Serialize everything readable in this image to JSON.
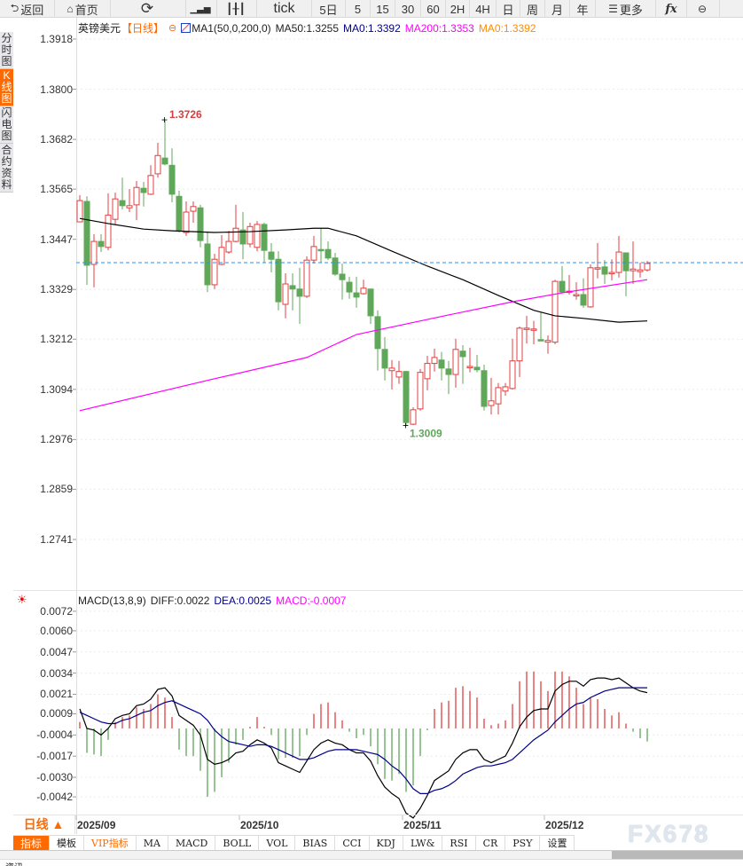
{
  "toolbar": {
    "items": [
      {
        "label": "返回",
        "icon": "back-arrow-icon"
      },
      {
        "label": "首页",
        "icon": "home-icon"
      },
      {
        "label": "",
        "icon": "refresh-icon"
      },
      {
        "label": "",
        "icon": "line-chart-icon"
      },
      {
        "label": "",
        "icon": "candlestick-icon"
      },
      {
        "label": "tick"
      },
      {
        "label": "5日"
      },
      {
        "label": "5"
      },
      {
        "label": "15"
      },
      {
        "label": "30"
      },
      {
        "label": "60"
      },
      {
        "label": "2H"
      },
      {
        "label": "4H"
      },
      {
        "label": "日"
      },
      {
        "label": "周"
      },
      {
        "label": "月"
      },
      {
        "label": "年"
      },
      {
        "label": "更多",
        "icon": "menu-icon"
      },
      {
        "label": "fx",
        "icon": "formula-icon"
      },
      {
        "label": "",
        "icon": "zoom-out-icon"
      }
    ]
  },
  "sidebar": {
    "items": [
      {
        "label": "分时图"
      },
      {
        "label": "K线图",
        "active": true
      },
      {
        "label": "闪电图"
      },
      {
        "label": "合约资料"
      }
    ]
  },
  "legend": {
    "symbol": "英镑美元",
    "period": "【日线】",
    "indicator": "MA1(50,0,200,0)",
    "ma50": "MA50:1.3255",
    "ma0a": "MA0:1.3392",
    "ma200": "MA200:1.3353",
    "ma0b": "MA0:1.3392"
  },
  "macd_legend": {
    "name": "MACD(13,8,9)",
    "diff": "DIFF:0.0022",
    "dea": "DEA:0.0025",
    "macd": "MACD:-0.0007"
  },
  "period_button": "日线 ▲",
  "tabs": [
    "指标",
    "模板",
    "VIP指标",
    "MA",
    "MACD",
    "BOLL",
    "VOL",
    "BIAS",
    "CCI",
    "KDJ",
    "LW&",
    "RSI",
    "CR",
    "PSY",
    "设置"
  ],
  "watermark": "FX678",
  "bottom_label": "资讯",
  "colors": {
    "up": "#e04040",
    "down": "#5fa85a",
    "ma50": "#000000",
    "ma200": "#ff00ff",
    "price_line": "#1e90ff",
    "dea": "#00008b",
    "accent": "#ff6a00"
  },
  "chart_data": [
    {
      "type": "candlestick",
      "ylim": [
        1.2741,
        1.3918
      ],
      "yticks": [
        "1.3918",
        "1.3800",
        "1.3682",
        "1.3565",
        "1.3447",
        "1.3329",
        "1.3212",
        "1.3094",
        "1.2976",
        "1.2859",
        "1.2741"
      ],
      "xticks": [
        {
          "label": "2025/09",
          "index": 1
        },
        {
          "label": "2025/10",
          "index": 24
        },
        {
          "label": "2025/11",
          "index": 47
        },
        {
          "label": "2025/12",
          "index": 67
        }
      ],
      "high_label": {
        "text": "1.3726",
        "index": 13,
        "value": 1.3726
      },
      "low_label": {
        "text": "1.3009",
        "index": 47,
        "value": 1.3009
      },
      "current_price": 1.3392,
      "ohlc": [
        [
          1.3488,
          1.3551,
          1.3488,
          1.3538
        ],
        [
          1.3536,
          1.3548,
          1.334,
          1.3386
        ],
        [
          1.3388,
          1.3459,
          1.3334,
          1.3442
        ],
        [
          1.3442,
          1.3459,
          1.3417,
          1.343
        ],
        [
          1.3428,
          1.3555,
          1.3421,
          1.3504
        ],
        [
          1.3494,
          1.3557,
          1.3482,
          1.3542
        ],
        [
          1.3538,
          1.3592,
          1.3517,
          1.3526
        ],
        [
          1.3521,
          1.3565,
          1.3511,
          1.3526
        ],
        [
          1.3528,
          1.3584,
          1.3492,
          1.3569
        ],
        [
          1.3567,
          1.3582,
          1.3524,
          1.3557
        ],
        [
          1.3553,
          1.3621,
          1.3551,
          1.3597
        ],
        [
          1.3601,
          1.3674,
          1.3592,
          1.3644
        ],
        [
          1.3638,
          1.3726,
          1.3621,
          1.3624
        ],
        [
          1.3621,
          1.3661,
          1.3534,
          1.3553
        ],
        [
          1.3548,
          1.3561,
          1.3463,
          1.3467
        ],
        [
          1.3463,
          1.3536,
          1.3455,
          1.3511
        ],
        [
          1.3513,
          1.3536,
          1.3486,
          1.3524
        ],
        [
          1.3521,
          1.3528,
          1.3428,
          1.3444
        ],
        [
          1.3436,
          1.3463,
          1.3323,
          1.334
        ],
        [
          1.334,
          1.3413,
          1.333,
          1.34
        ],
        [
          1.3388,
          1.3457,
          1.3386,
          1.3428
        ],
        [
          1.3417,
          1.3467,
          1.3413,
          1.3442
        ],
        [
          1.3442,
          1.3528,
          1.344,
          1.3473
        ],
        [
          1.3469,
          1.3511,
          1.34,
          1.3436
        ],
        [
          1.3436,
          1.3486,
          1.3428,
          1.3477
        ],
        [
          1.3428,
          1.349,
          1.3419,
          1.3482
        ],
        [
          1.3482,
          1.3486,
          1.3392,
          1.3421
        ],
        [
          1.3417,
          1.3438,
          1.3369,
          1.34
        ],
        [
          1.34,
          1.3419,
          1.328,
          1.33
        ],
        [
          1.3294,
          1.3367,
          1.3261,
          1.3342
        ],
        [
          1.3338,
          1.3367,
          1.328,
          1.333
        ],
        [
          1.333,
          1.338,
          1.3248,
          1.3313
        ],
        [
          1.3313,
          1.3407,
          1.3309,
          1.3398
        ],
        [
          1.3398,
          1.3455,
          1.339,
          1.343
        ],
        [
          1.3423,
          1.3473,
          1.3392,
          1.3421
        ],
        [
          1.3423,
          1.3442,
          1.3398,
          1.3403
        ],
        [
          1.3403,
          1.3415,
          1.3361,
          1.3365
        ],
        [
          1.3365,
          1.339,
          1.3305,
          1.3352
        ],
        [
          1.3346,
          1.3359,
          1.3307,
          1.3323
        ],
        [
          1.3321,
          1.3359,
          1.3286,
          1.3311
        ],
        [
          1.3319,
          1.3352,
          1.3317,
          1.3332
        ],
        [
          1.333,
          1.333,
          1.3248,
          1.3267
        ],
        [
          1.3265,
          1.328,
          1.3138,
          1.319
        ],
        [
          1.3188,
          1.3217,
          1.3115,
          1.3144
        ],
        [
          1.3138,
          1.3163,
          1.3094,
          1.3144
        ],
        [
          1.3123,
          1.3161,
          1.3107,
          1.3136
        ],
        [
          1.3136,
          1.3138,
          1.3009,
          1.3016
        ],
        [
          1.3012,
          1.3052,
          1.301,
          1.3046
        ],
        [
          1.3048,
          1.3142,
          1.3044,
          1.3134
        ],
        [
          1.3119,
          1.3173,
          1.3092,
          1.3155
        ],
        [
          1.3155,
          1.319,
          1.3136,
          1.3169
        ],
        [
          1.3163,
          1.3182,
          1.3115,
          1.3144
        ],
        [
          1.3142,
          1.3161,
          1.3083,
          1.3129
        ],
        [
          1.3129,
          1.3213,
          1.3098,
          1.3188
        ],
        [
          1.3184,
          1.3198,
          1.3107,
          1.3171
        ],
        [
          1.3146,
          1.3192,
          1.3134,
          1.3148
        ],
        [
          1.3146,
          1.3175,
          1.3134,
          1.314
        ],
        [
          1.3138,
          1.3152,
          1.3044,
          1.3054
        ],
        [
          1.3056,
          1.3121,
          1.3035,
          1.3067
        ],
        [
          1.306,
          1.3109,
          1.3035,
          1.3098
        ],
        [
          1.309,
          1.3109,
          1.3079,
          1.31
        ],
        [
          1.3096,
          1.3213,
          1.3094,
          1.3161
        ],
        [
          1.3161,
          1.3242,
          1.3123,
          1.3238
        ],
        [
          1.3236,
          1.3267,
          1.3202,
          1.3238
        ],
        [
          1.3234,
          1.3255,
          1.32,
          1.3236
        ],
        [
          1.3211,
          1.3275,
          1.3209,
          1.3209
        ],
        [
          1.3205,
          1.3221,
          1.3178,
          1.3209
        ],
        [
          1.3205,
          1.3352,
          1.32,
          1.3348
        ],
        [
          1.3348,
          1.3384,
          1.3321,
          1.3323
        ],
        [
          1.3323,
          1.3363,
          1.3317,
          1.3325
        ],
        [
          1.3315,
          1.3346,
          1.3305,
          1.3317
        ],
        [
          1.3317,
          1.3355,
          1.3286,
          1.3292
        ],
        [
          1.3288,
          1.3388,
          1.3286,
          1.338
        ],
        [
          1.3377,
          1.3438,
          1.3355,
          1.338
        ],
        [
          1.3382,
          1.3398,
          1.3342,
          1.3365
        ],
        [
          1.3367,
          1.34,
          1.335,
          1.3369
        ],
        [
          1.3369,
          1.3455,
          1.3357,
          1.3417
        ],
        [
          1.3415,
          1.3415,
          1.3313,
          1.3373
        ],
        [
          1.3373,
          1.3442,
          1.3342,
          1.3377
        ],
        [
          1.3371,
          1.3392,
          1.3357,
          1.3375
        ],
        [
          1.3375,
          1.3396,
          1.3371,
          1.339
        ]
      ],
      "ma50": [
        [
          1,
          1.3496
        ],
        [
          5,
          1.3484
        ],
        [
          10,
          1.3471
        ],
        [
          14,
          1.3467
        ],
        [
          20,
          1.3463
        ],
        [
          25,
          1.3465
        ],
        [
          30,
          1.3469
        ],
        [
          34,
          1.3473
        ],
        [
          36,
          1.3473
        ],
        [
          40,
          1.3455
        ],
        [
          45,
          1.3419
        ],
        [
          50,
          1.3384
        ],
        [
          55,
          1.3352
        ],
        [
          60,
          1.3315
        ],
        [
          65,
          1.328
        ],
        [
          68,
          1.3267
        ],
        [
          72,
          1.3261
        ],
        [
          77,
          1.3252
        ],
        [
          81,
          1.3255
        ]
      ],
      "ma200": [
        [
          1,
          1.3044
        ],
        [
          20,
          1.3119
        ],
        [
          33,
          1.3169
        ],
        [
          40,
          1.3223
        ],
        [
          53,
          1.3269
        ],
        [
          62,
          1.33
        ],
        [
          69,
          1.3321
        ],
        [
          81,
          1.3352
        ]
      ]
    },
    {
      "type": "macd",
      "ylim": [
        -0.0042,
        0.0072
      ],
      "yticks": [
        "0.0072",
        "0.0060",
        "0.0047",
        "0.0034",
        "0.0021",
        "0.0009",
        "-0.0004",
        "-0.0017",
        "-0.0030",
        "-0.0042"
      ],
      "hist": [
        0.0004,
        -0.0015,
        -0.0016,
        -0.0017,
        -0.0007,
        0.0004,
        0.0007,
        0.0008,
        0.0013,
        0.0012,
        0.0015,
        0.0021,
        0.0019,
        0.0007,
        -0.0013,
        -0.0017,
        -0.0017,
        -0.0026,
        -0.0042,
        -0.0039,
        -0.003,
        -0.0021,
        -0.001,
        -0.0007,
        0.0001,
        0.0007,
        0.0001,
        -0.0004,
        -0.0019,
        -0.0018,
        -0.0018,
        -0.0017,
        -0.0004,
        0.0009,
        0.0015,
        0.0016,
        0.001,
        0.0005,
        -0.0002,
        -0.0006,
        -0.0004,
        -0.0011,
        -0.0022,
        -0.0031,
        -0.0032,
        -0.0028,
        -0.0039,
        -0.0035,
        -0.0017,
        -0.0001,
        0.0012,
        0.0016,
        0.0017,
        0.0025,
        0.0026,
        0.0023,
        0.0019,
        0.0006,
        0.0002,
        0.0003,
        0.0005,
        0.0015,
        0.0029,
        0.0035,
        0.0035,
        0.0029,
        0.0023,
        0.0035,
        0.0035,
        0.0032,
        0.0025,
        0.0015,
        0.0019,
        0.0018,
        0.0012,
        0.0008,
        0.001,
        0.0003,
        -0.0002,
        -0.0006,
        -0.0008
      ],
      "diff": [
        0.0012,
        0.0,
        -0.0001,
        -0.0004,
        0.0,
        0.0006,
        0.0008,
        0.0009,
        0.0014,
        0.0015,
        0.0018,
        0.0024,
        0.0025,
        0.002,
        0.0008,
        0.0005,
        0.0002,
        -0.0004,
        -0.0019,
        -0.0022,
        -0.0021,
        -0.0019,
        -0.0015,
        -0.0014,
        -0.001,
        -0.0007,
        -0.0009,
        -0.0012,
        -0.0021,
        -0.0023,
        -0.0025,
        -0.0027,
        -0.002,
        -0.0013,
        -0.0009,
        -0.0007,
        -0.0009,
        -0.001,
        -0.0013,
        -0.0015,
        -0.0015,
        -0.002,
        -0.0029,
        -0.0036,
        -0.004,
        -0.0043,
        -0.0052,
        -0.0055,
        -0.0049,
        -0.0041,
        -0.0032,
        -0.0029,
        -0.0026,
        -0.0019,
        -0.0015,
        -0.0013,
        -0.0013,
        -0.0019,
        -0.0021,
        -0.0019,
        -0.0017,
        -0.0009,
        0.0001,
        0.0007,
        0.0011,
        0.0012,
        0.0012,
        0.0023,
        0.0027,
        0.0029,
        0.0029,
        0.0026,
        0.003,
        0.0031,
        0.0031,
        0.003,
        0.0031,
        0.0028,
        0.0025,
        0.0023,
        0.0022
      ],
      "dea": [
        0.001,
        0.0008,
        0.0006,
        0.0004,
        0.0003,
        0.0003,
        0.0005,
        0.0006,
        0.0008,
        0.001,
        0.0011,
        0.0014,
        0.0016,
        0.0017,
        0.0015,
        0.0013,
        0.0011,
        0.0009,
        0.0005,
        -0.0001,
        -0.0005,
        -0.0008,
        -0.0009,
        -0.001,
        -0.0011,
        -0.001,
        -0.001,
        -0.0011,
        -0.0013,
        -0.0015,
        -0.0017,
        -0.0019,
        -0.0019,
        -0.0018,
        -0.0016,
        -0.0014,
        -0.0013,
        -0.0013,
        -0.0013,
        -0.0013,
        -0.0014,
        -0.0015,
        -0.0016,
        -0.0019,
        -0.0023,
        -0.0026,
        -0.0031,
        -0.0037,
        -0.004,
        -0.004,
        -0.0038,
        -0.0037,
        -0.0035,
        -0.0032,
        -0.0028,
        -0.0026,
        -0.0024,
        -0.0023,
        -0.0023,
        -0.0022,
        -0.0021,
        -0.0019,
        -0.0015,
        -0.0011,
        -0.0007,
        -0.0004,
        -0.0001,
        0.0004,
        0.0008,
        0.0012,
        0.0015,
        0.0016,
        0.0019,
        0.0021,
        0.0023,
        0.0024,
        0.0025,
        0.0025,
        0.0025,
        0.0025,
        0.0025
      ]
    }
  ]
}
